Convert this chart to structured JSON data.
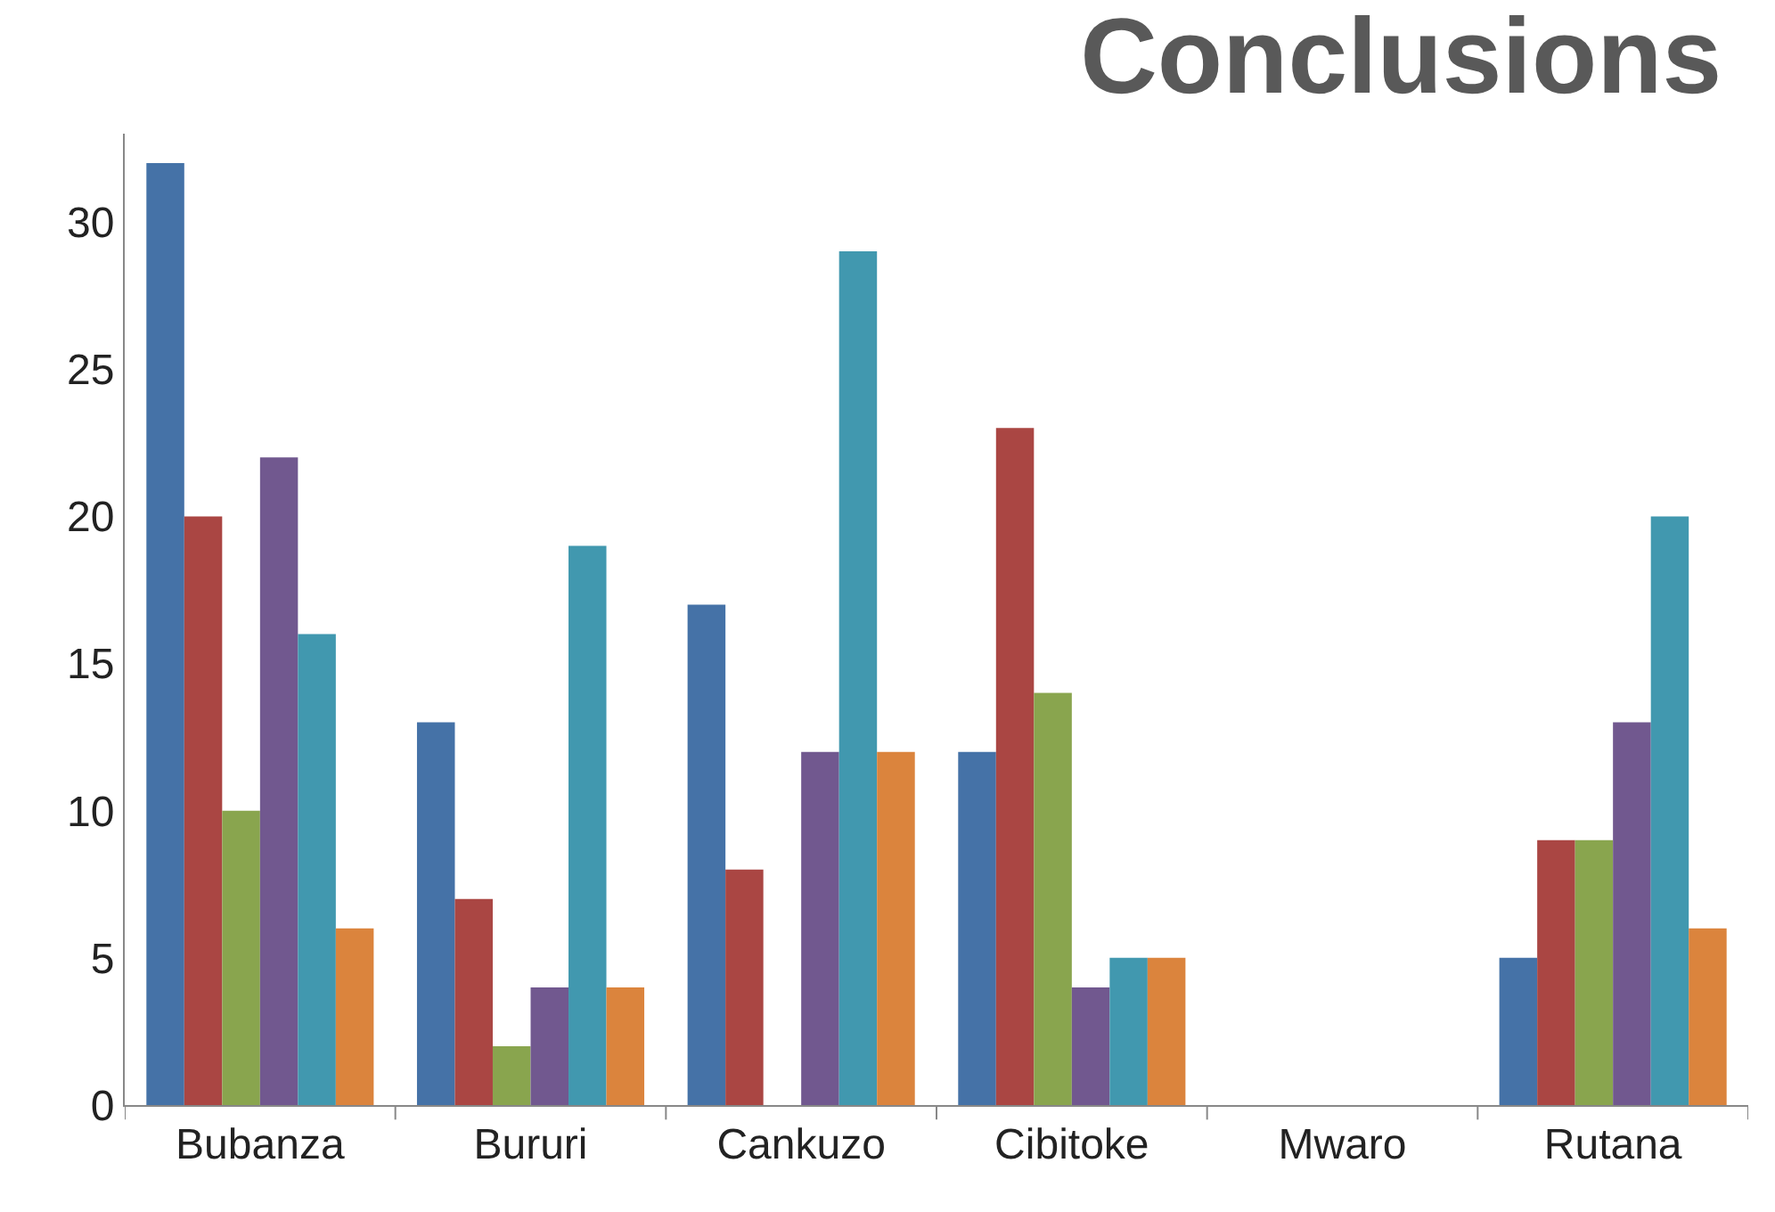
{
  "chart_data": {
    "type": "bar",
    "title": "Conclusions",
    "categories": [
      "Bubanza",
      "Bururi",
      "Cankuzo",
      "Cibitoke",
      "Mwaro",
      "Rutana"
    ],
    "series": [
      {
        "color": "#4572a7",
        "values": [
          32,
          13,
          17,
          12,
          0,
          5
        ]
      },
      {
        "color": "#aa4643",
        "values": [
          20,
          7,
          8,
          23,
          0,
          9
        ]
      },
      {
        "color": "#89a54e",
        "values": [
          10,
          2,
          0,
          14,
          0,
          9
        ]
      },
      {
        "color": "#71588f",
        "values": [
          22,
          4,
          12,
          4,
          0,
          13
        ]
      },
      {
        "color": "#4198af",
        "values": [
          16,
          19,
          29,
          5,
          0,
          20
        ]
      },
      {
        "color": "#db843d",
        "values": [
          6,
          4,
          12,
          5,
          0,
          6
        ]
      }
    ],
    "ylim": [
      0,
      33
    ],
    "yticks": [
      0,
      5,
      10,
      15,
      20,
      25,
      30
    ]
  }
}
